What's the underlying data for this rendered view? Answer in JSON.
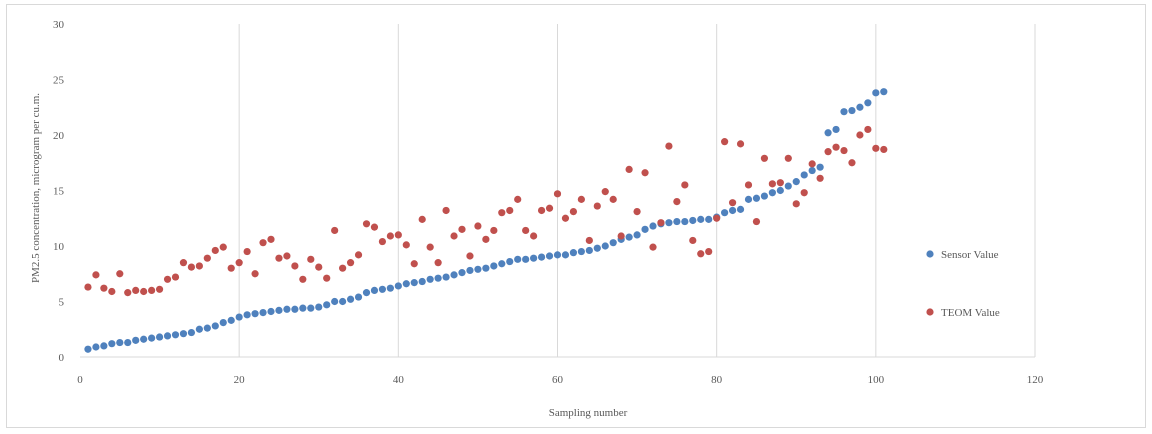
{
  "chart_data": {
    "type": "scatter",
    "title": "",
    "xlabel": "Sampling number",
    "ylabel": "PM2.5 concentration, microgram per cu.m.",
    "xlim": [
      0,
      120
    ],
    "ylim": [
      0,
      30
    ],
    "xticks": [
      0,
      20,
      40,
      60,
      80,
      100,
      120
    ],
    "yticks": [
      0,
      5,
      10,
      15,
      20,
      25,
      30
    ],
    "grid": "vertical",
    "legend": "right",
    "series": [
      {
        "name": "Sensor Value",
        "color": "#4f81bd",
        "x": [
          1,
          2,
          3,
          4,
          5,
          6,
          7,
          8,
          9,
          10,
          11,
          12,
          13,
          14,
          15,
          16,
          17,
          18,
          19,
          20,
          21,
          22,
          23,
          24,
          25,
          26,
          27,
          28,
          29,
          30,
          31,
          32,
          33,
          34,
          35,
          36,
          37,
          38,
          39,
          40,
          41,
          42,
          43,
          44,
          45,
          46,
          47,
          48,
          49,
          50,
          51,
          52,
          53,
          54,
          55,
          56,
          57,
          58,
          59,
          60,
          61,
          62,
          63,
          64,
          65,
          66,
          67,
          68,
          69,
          70,
          71,
          72,
          73,
          74,
          75,
          76,
          77,
          78,
          79,
          80,
          81,
          82,
          83,
          84,
          85,
          86,
          87,
          88,
          89,
          90,
          91,
          92,
          93,
          94,
          95,
          96,
          97,
          98,
          99,
          100,
          101
        ],
        "y": [
          0.7,
          0.9,
          1.0,
          1.2,
          1.3,
          1.3,
          1.5,
          1.6,
          1.7,
          1.8,
          1.9,
          2.0,
          2.1,
          2.2,
          2.5,
          2.6,
          2.8,
          3.1,
          3.3,
          3.6,
          3.8,
          3.9,
          4.0,
          4.1,
          4.2,
          4.3,
          4.3,
          4.4,
          4.4,
          4.5,
          4.7,
          5.0,
          5.0,
          5.2,
          5.4,
          5.8,
          6.0,
          6.1,
          6.2,
          6.4,
          6.6,
          6.7,
          6.8,
          7.0,
          7.1,
          7.2,
          7.4,
          7.6,
          7.8,
          7.9,
          8.0,
          8.2,
          8.4,
          8.6,
          8.8,
          8.8,
          8.9,
          9.0,
          9.1,
          9.2,
          9.2,
          9.4,
          9.5,
          9.6,
          9.8,
          10.0,
          10.3,
          10.6,
          10.8,
          11.0,
          11.5,
          11.8,
          12.0,
          12.1,
          12.2,
          12.2,
          12.3,
          12.4,
          12.4,
          12.6,
          13.0,
          13.2,
          13.3,
          14.2,
          14.3,
          14.5,
          14.8,
          15.0,
          15.4,
          15.8,
          16.4,
          16.8,
          17.1,
          20.2,
          20.5,
          22.1,
          22.2,
          22.5,
          22.9,
          23.8,
          23.9
        ]
      },
      {
        "name": "TEOM Value",
        "color": "#c0504d",
        "x": [
          1,
          2,
          3,
          4,
          5,
          6,
          7,
          8,
          9,
          10,
          11,
          12,
          13,
          14,
          15,
          16,
          17,
          18,
          19,
          20,
          21,
          22,
          23,
          24,
          25,
          26,
          27,
          28,
          29,
          30,
          31,
          32,
          33,
          34,
          35,
          36,
          37,
          38,
          39,
          40,
          41,
          42,
          43,
          44,
          45,
          46,
          47,
          48,
          49,
          50,
          51,
          52,
          53,
          54,
          55,
          56,
          57,
          58,
          59,
          60,
          61,
          62,
          63,
          64,
          65,
          66,
          67,
          68,
          69,
          70,
          71,
          72,
          73,
          74,
          75,
          76,
          77,
          78,
          79,
          80,
          81,
          82,
          83,
          84,
          85,
          86,
          87,
          88,
          89,
          90,
          91,
          92,
          93,
          94,
          95,
          96,
          97,
          98,
          99,
          100,
          101
        ],
        "y": [
          6.3,
          7.4,
          6.2,
          5.9,
          7.5,
          5.8,
          6.0,
          5.9,
          6.0,
          6.1,
          7.0,
          7.2,
          8.5,
          8.1,
          8.2,
          8.9,
          9.6,
          9.9,
          8.0,
          8.5,
          9.5,
          7.5,
          10.3,
          10.6,
          8.9,
          9.1,
          8.2,
          7.0,
          8.8,
          8.1,
          7.1,
          11.4,
          8.0,
          8.5,
          9.2,
          12.0,
          11.7,
          10.4,
          10.9,
          11.0,
          10.1,
          8.4,
          12.4,
          9.9,
          8.5,
          13.2,
          10.9,
          11.5,
          9.1,
          11.8,
          10.6,
          11.4,
          13.0,
          13.2,
          14.2,
          11.4,
          10.9,
          13.2,
          13.4,
          14.7,
          12.5,
          13.1,
          14.2,
          10.5,
          13.6,
          14.9,
          14.2,
          10.9,
          16.9,
          13.1,
          16.6,
          9.9,
          12.1,
          19.0,
          14.0,
          15.5,
          10.5,
          9.3,
          9.5,
          12.5,
          19.4,
          13.9,
          19.2,
          15.5,
          12.2,
          17.9,
          15.6,
          15.7,
          17.9,
          13.8,
          14.8,
          17.4,
          16.1,
          18.5,
          18.9,
          18.6,
          17.5,
          20.0,
          20.5,
          18.8,
          18.7
        ]
      }
    ]
  }
}
